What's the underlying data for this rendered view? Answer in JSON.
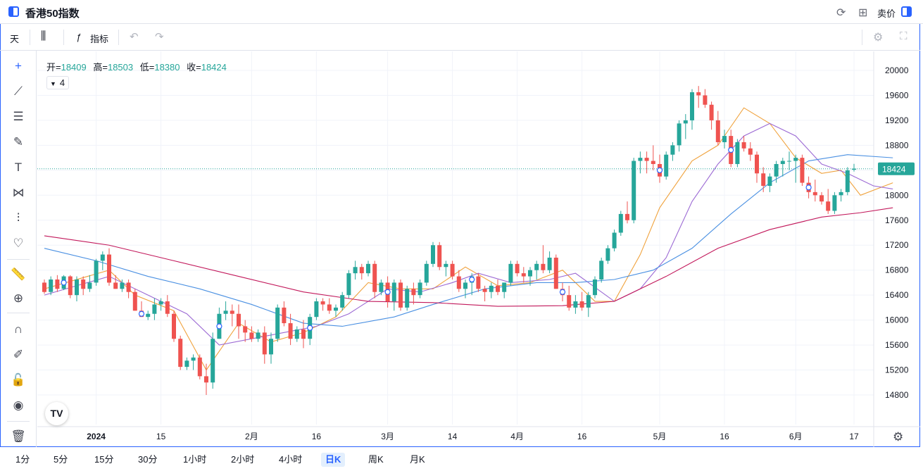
{
  "window": {
    "title": "香港50指数",
    "sell_label": "卖价"
  },
  "toolbar": {
    "period": "天",
    "indicators_label": "指标"
  },
  "ohlc": {
    "open_label": "开=",
    "open": "18409",
    "high_label": "高=",
    "high": "18503",
    "low_label": "低=",
    "low": "18380",
    "close_label": "收=",
    "close": "18424"
  },
  "indicator_count": "4",
  "logo_text": "TV",
  "intervals": [
    "1分",
    "5分",
    "15分",
    "30分",
    "1小时",
    "2小时",
    "4小时",
    "日K",
    "周K",
    "月K"
  ],
  "selected_interval": "日K",
  "colors": {
    "up": "#26a69a",
    "down": "#ef5350",
    "accent": "#2962ff",
    "ma5": "#f0a23c",
    "ma10": "#9c6ad4",
    "ma30": "#4a90e2",
    "ma60": "#c2185b"
  },
  "chart_data": {
    "type": "candlestick",
    "ylim": [
      14400,
      20200
    ],
    "y_ticks": [
      14800,
      15200,
      15600,
      16000,
      16400,
      16800,
      17200,
      17600,
      18000,
      18400,
      18800,
      19200,
      19600,
      20000
    ],
    "x_labels": [
      {
        "label": "2024",
        "index": 8,
        "bold": true
      },
      {
        "label": "15",
        "index": 18
      },
      {
        "label": "2月",
        "index": 32
      },
      {
        "label": "16",
        "index": 42
      },
      {
        "label": "3月",
        "index": 53
      },
      {
        "label": "14",
        "index": 63
      },
      {
        "label": "4月",
        "index": 73
      },
      {
        "label": "16",
        "index": 83
      },
      {
        "label": "5月",
        "index": 95
      },
      {
        "label": "16",
        "index": 105
      },
      {
        "label": "6月",
        "index": 116
      },
      {
        "label": "17",
        "index": 125
      }
    ],
    "last_price": 18424,
    "candles": [
      [
        16600,
        16650,
        16420,
        16450
      ],
      [
        16450,
        16700,
        16400,
        16650
      ],
      [
        16650,
        16720,
        16450,
        16500
      ],
      [
        16500,
        16720,
        16480,
        16700
      ],
      [
        16700,
        16720,
        16350,
        16400
      ],
      [
        16400,
        16700,
        16300,
        16650
      ],
      [
        16650,
        16700,
        16400,
        16500
      ],
      [
        16500,
        16720,
        16450,
        16600
      ],
      [
        16600,
        16980,
        16550,
        16950
      ],
      [
        16950,
        17100,
        16800,
        17050
      ],
      [
        17050,
        17150,
        16550,
        16600
      ],
      [
        16600,
        16720,
        16500,
        16500
      ],
      [
        16500,
        16650,
        16450,
        16600
      ],
      [
        16600,
        16650,
        16350,
        16450
      ],
      [
        16450,
        16500,
        16150,
        16150
      ],
      [
        16150,
        16300,
        16050,
        16050
      ],
      [
        16050,
        16150,
        16000,
        16100
      ],
      [
        16100,
        16350,
        16000,
        16250
      ],
      [
        16250,
        16350,
        16150,
        16300
      ],
      [
        16300,
        16400,
        16050,
        16100
      ],
      [
        16100,
        16150,
        15650,
        15700
      ],
      [
        15700,
        15750,
        15200,
        15250
      ],
      [
        15250,
        15400,
        15200,
        15350
      ],
      [
        15350,
        15450,
        15200,
        15400
      ],
      [
        15400,
        15450,
        15050,
        15100
      ],
      [
        15100,
        15300,
        14800,
        15000
      ],
      [
        15000,
        15800,
        14900,
        15700
      ],
      [
        15700,
        16200,
        15700,
        16100
      ],
      [
        16100,
        16300,
        16000,
        16150
      ],
      [
        16150,
        16250,
        15900,
        16100
      ],
      [
        16100,
        16250,
        15700,
        15900
      ],
      [
        15900,
        16000,
        15650,
        15800
      ],
      [
        15800,
        15900,
        15650,
        15700
      ],
      [
        15700,
        15850,
        15650,
        15800
      ],
      [
        15800,
        15900,
        15300,
        15450
      ],
      [
        15450,
        15800,
        15300,
        15700
      ],
      [
        15700,
        16250,
        15650,
        16200
      ],
      [
        16200,
        16300,
        15900,
        15950
      ],
      [
        15950,
        16100,
        15600,
        15700
      ],
      [
        15700,
        15900,
        15650,
        15850
      ],
      [
        15850,
        16000,
        15550,
        15700
      ],
      [
        15700,
        16100,
        15600,
        16050
      ],
      [
        16050,
        16350,
        16000,
        16300
      ],
      [
        16300,
        16350,
        16150,
        16250
      ],
      [
        16250,
        16350,
        16100,
        16150
      ],
      [
        16150,
        16250,
        16050,
        16200
      ],
      [
        16200,
        16450,
        16150,
        16400
      ],
      [
        16400,
        16800,
        16350,
        16750
      ],
      [
        16750,
        16950,
        16650,
        16850
      ],
      [
        16850,
        16900,
        16650,
        16750
      ],
      [
        16750,
        16950,
        16700,
        16900
      ],
      [
        16900,
        16950,
        16350,
        16450
      ],
      [
        16450,
        16650,
        16400,
        16600
      ],
      [
        16600,
        16700,
        16200,
        16300
      ],
      [
        16300,
        16650,
        16150,
        16600
      ],
      [
        16600,
        16650,
        16150,
        16200
      ],
      [
        16200,
        16550,
        16150,
        16500
      ],
      [
        16500,
        16600,
        16250,
        16400
      ],
      [
        16400,
        16650,
        16350,
        16600
      ],
      [
        16600,
        16950,
        16550,
        16900
      ],
      [
        16900,
        17250,
        16850,
        17200
      ],
      [
        17200,
        17250,
        16800,
        16850
      ],
      [
        16850,
        16950,
        16700,
        16900
      ],
      [
        16900,
        16950,
        16650,
        16700
      ],
      [
        16700,
        16800,
        16450,
        16500
      ],
      [
        16500,
        16650,
        16350,
        16600
      ],
      [
        16600,
        16750,
        16400,
        16700
      ],
      [
        16700,
        16750,
        16450,
        16500
      ],
      [
        16500,
        16550,
        16300,
        16450
      ],
      [
        16450,
        16600,
        16350,
        16550
      ],
      [
        16550,
        16650,
        16400,
        16450
      ],
      [
        16450,
        16600,
        16350,
        16600
      ],
      [
        16600,
        16950,
        16550,
        16900
      ],
      [
        16900,
        16950,
        16700,
        16750
      ],
      [
        16750,
        16850,
        16600,
        16700
      ],
      [
        16700,
        16850,
        16550,
        16800
      ],
      [
        16800,
        16950,
        16650,
        16900
      ],
      [
        16900,
        17200,
        16750,
        16800
      ],
      [
        16800,
        17100,
        16750,
        17000
      ],
      [
        17000,
        17050,
        16500,
        16500
      ],
      [
        16500,
        16600,
        16300,
        16400
      ],
      [
        16400,
        16550,
        16150,
        16200
      ],
      [
        16200,
        16400,
        16100,
        16300
      ],
      [
        16300,
        16450,
        16150,
        16200
      ],
      [
        16200,
        16450,
        16050,
        16400
      ],
      [
        16400,
        16700,
        16350,
        16650
      ],
      [
        16650,
        17000,
        16600,
        16950
      ],
      [
        16950,
        17200,
        16900,
        17150
      ],
      [
        17150,
        17450,
        17100,
        17400
      ],
      [
        17400,
        17750,
        17350,
        17700
      ],
      [
        17700,
        17900,
        17550,
        17600
      ],
      [
        17600,
        18600,
        17550,
        18550
      ],
      [
        18550,
        18700,
        18350,
        18600
      ],
      [
        18600,
        18700,
        18350,
        18550
      ],
      [
        18550,
        18800,
        18400,
        18500
      ],
      [
        18500,
        18650,
        18200,
        18300
      ],
      [
        18300,
        18700,
        18250,
        18650
      ],
      [
        18650,
        18850,
        18550,
        18800
      ],
      [
        18800,
        19200,
        18700,
        19150
      ],
      [
        19150,
        19300,
        18900,
        19200
      ],
      [
        19200,
        19700,
        19050,
        19650
      ],
      [
        19650,
        19750,
        19400,
        19600
      ],
      [
        19600,
        19700,
        19400,
        19450
      ],
      [
        19450,
        19500,
        19050,
        19200
      ],
      [
        19200,
        19350,
        18800,
        18850
      ],
      [
        18850,
        19050,
        18750,
        18950
      ],
      [
        18950,
        19050,
        18450,
        18500
      ],
      [
        18500,
        18900,
        18450,
        18850
      ],
      [
        18850,
        18950,
        18700,
        18750
      ],
      [
        18750,
        18850,
        18550,
        18650
      ],
      [
        18650,
        18700,
        18200,
        18350
      ],
      [
        18350,
        18450,
        18050,
        18150
      ],
      [
        18150,
        18350,
        18050,
        18300
      ],
      [
        18300,
        18550,
        18200,
        18500
      ],
      [
        18500,
        18600,
        18300,
        18550
      ],
      [
        18550,
        18700,
        18400,
        18550
      ],
      [
        18550,
        18650,
        18200,
        18600
      ],
      [
        18600,
        18650,
        18150,
        18200
      ],
      [
        18200,
        18300,
        17950,
        18050
      ],
      [
        18050,
        18250,
        17900,
        18000
      ],
      [
        18000,
        18050,
        17850,
        17900
      ],
      [
        17900,
        18100,
        17700,
        17750
      ],
      [
        17750,
        18050,
        17700,
        18000
      ],
      [
        18000,
        18100,
        17900,
        18050
      ],
      [
        18050,
        18450,
        18000,
        18400
      ],
      [
        18409,
        18503,
        18380,
        18424
      ]
    ],
    "ma_series": [
      {
        "key": "ma5",
        "points": [
          [
            0,
            16500
          ],
          [
            10,
            16800
          ],
          [
            14,
            16400
          ],
          [
            20,
            16150
          ],
          [
            25,
            15200
          ],
          [
            30,
            15950
          ],
          [
            35,
            15650
          ],
          [
            40,
            15800
          ],
          [
            45,
            16050
          ],
          [
            50,
            16600
          ],
          [
            55,
            16500
          ],
          [
            60,
            16500
          ],
          [
            65,
            16850
          ],
          [
            70,
            16550
          ],
          [
            75,
            16600
          ],
          [
            80,
            16800
          ],
          [
            85,
            16300
          ],
          [
            88,
            16300
          ],
          [
            92,
            17050
          ],
          [
            95,
            17800
          ],
          [
            100,
            18550
          ],
          [
            104,
            18800
          ],
          [
            108,
            19400
          ],
          [
            112,
            19150
          ],
          [
            116,
            18600
          ],
          [
            120,
            18350
          ],
          [
            123,
            18400
          ],
          [
            126,
            18000
          ],
          [
            131,
            18200
          ]
        ]
      },
      {
        "key": "ma10",
        "points": [
          [
            0,
            16400
          ],
          [
            10,
            16700
          ],
          [
            16,
            16400
          ],
          [
            22,
            16100
          ],
          [
            27,
            15600
          ],
          [
            32,
            15700
          ],
          [
            37,
            15800
          ],
          [
            42,
            15900
          ],
          [
            47,
            16100
          ],
          [
            53,
            16500
          ],
          [
            58,
            16450
          ],
          [
            63,
            16600
          ],
          [
            67,
            16750
          ],
          [
            72,
            16600
          ],
          [
            78,
            16650
          ],
          [
            82,
            16750
          ],
          [
            88,
            16300
          ],
          [
            92,
            16500
          ],
          [
            96,
            17000
          ],
          [
            100,
            17900
          ],
          [
            104,
            18500
          ],
          [
            108,
            18950
          ],
          [
            112,
            19150
          ],
          [
            116,
            18950
          ],
          [
            120,
            18500
          ],
          [
            124,
            18350
          ],
          [
            128,
            18150
          ],
          [
            131,
            18100
          ]
        ]
      },
      {
        "key": "ma30",
        "points": [
          [
            0,
            17150
          ],
          [
            8,
            16950
          ],
          [
            16,
            16700
          ],
          [
            24,
            16500
          ],
          [
            32,
            16250
          ],
          [
            40,
            15950
          ],
          [
            46,
            15900
          ],
          [
            54,
            16050
          ],
          [
            60,
            16250
          ],
          [
            68,
            16500
          ],
          [
            76,
            16600
          ],
          [
            82,
            16600
          ],
          [
            88,
            16650
          ],
          [
            94,
            16800
          ],
          [
            100,
            17150
          ],
          [
            106,
            17700
          ],
          [
            112,
            18200
          ],
          [
            118,
            18550
          ],
          [
            124,
            18650
          ],
          [
            131,
            18600
          ]
        ]
      },
      {
        "key": "ma60",
        "points": [
          [
            0,
            17350
          ],
          [
            10,
            17200
          ],
          [
            20,
            16950
          ],
          [
            30,
            16700
          ],
          [
            40,
            16450
          ],
          [
            50,
            16300
          ],
          [
            60,
            16280
          ],
          [
            70,
            16220
          ],
          [
            80,
            16230
          ],
          [
            88,
            16300
          ],
          [
            96,
            16700
          ],
          [
            104,
            17150
          ],
          [
            112,
            17450
          ],
          [
            120,
            17650
          ],
          [
            126,
            17720
          ],
          [
            131,
            17800
          ]
        ]
      }
    ],
    "markers": [
      3,
      15,
      27,
      41,
      53,
      66,
      80,
      95,
      106,
      118
    ]
  }
}
